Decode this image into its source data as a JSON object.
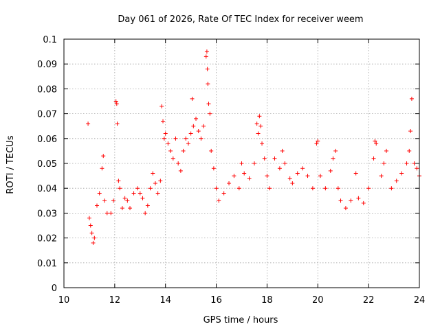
{
  "chart_data": {
    "type": "scatter",
    "title": "Day 061 of 2026, Rate Of TEC Index for receiver weem",
    "xlabel": "GPS time / hours",
    "ylabel": "ROTI / TECUs",
    "xlim": [
      10,
      24
    ],
    "ylim": [
      0,
      0.1
    ],
    "xticks": [
      10,
      12,
      14,
      16,
      18,
      20,
      22,
      24
    ],
    "yticks": [
      0,
      0.01,
      0.02,
      0.03,
      0.04,
      0.05,
      0.06,
      0.07,
      0.08,
      0.09,
      0.1
    ],
    "grid": true,
    "marker": "+",
    "color": "#ff0000",
    "points": [
      [
        10.95,
        0.066
      ],
      [
        11.0,
        0.028
      ],
      [
        11.05,
        0.025
      ],
      [
        11.1,
        0.022
      ],
      [
        11.15,
        0.018
      ],
      [
        11.2,
        0.02
      ],
      [
        11.3,
        0.033
      ],
      [
        11.4,
        0.038
      ],
      [
        11.5,
        0.048
      ],
      [
        11.55,
        0.053
      ],
      [
        11.6,
        0.035
      ],
      [
        11.7,
        0.03
      ],
      [
        11.85,
        0.03
      ],
      [
        11.95,
        0.035
      ],
      [
        12.05,
        0.075
      ],
      [
        12.08,
        0.074
      ],
      [
        12.1,
        0.066
      ],
      [
        12.15,
        0.043
      ],
      [
        12.2,
        0.04
      ],
      [
        12.3,
        0.032
      ],
      [
        12.4,
        0.036
      ],
      [
        12.5,
        0.035
      ],
      [
        12.6,
        0.032
      ],
      [
        12.75,
        0.038
      ],
      [
        12.9,
        0.04
      ],
      [
        13.0,
        0.038
      ],
      [
        13.1,
        0.036
      ],
      [
        13.2,
        0.03
      ],
      [
        13.3,
        0.033
      ],
      [
        13.4,
        0.04
      ],
      [
        13.5,
        0.046
      ],
      [
        13.6,
        0.042
      ],
      [
        13.7,
        0.038
      ],
      [
        13.8,
        0.043
      ],
      [
        13.85,
        0.073
      ],
      [
        13.9,
        0.067
      ],
      [
        13.95,
        0.06
      ],
      [
        14.0,
        0.062
      ],
      [
        14.1,
        0.058
      ],
      [
        14.2,
        0.055
      ],
      [
        14.3,
        0.052
      ],
      [
        14.4,
        0.06
      ],
      [
        14.5,
        0.05
      ],
      [
        14.6,
        0.047
      ],
      [
        14.7,
        0.055
      ],
      [
        14.8,
        0.06
      ],
      [
        14.9,
        0.058
      ],
      [
        15.0,
        0.062
      ],
      [
        15.05,
        0.076
      ],
      [
        15.1,
        0.065
      ],
      [
        15.2,
        0.068
      ],
      [
        15.3,
        0.063
      ],
      [
        15.4,
        0.06
      ],
      [
        15.5,
        0.065
      ],
      [
        15.6,
        0.093
      ],
      [
        15.63,
        0.095
      ],
      [
        15.65,
        0.088
      ],
      [
        15.67,
        0.082
      ],
      [
        15.7,
        0.074
      ],
      [
        15.75,
        0.07
      ],
      [
        15.8,
        0.055
      ],
      [
        15.9,
        0.048
      ],
      [
        16.0,
        0.04
      ],
      [
        16.1,
        0.035
      ],
      [
        16.3,
        0.038
      ],
      [
        16.5,
        0.042
      ],
      [
        16.7,
        0.045
      ],
      [
        16.9,
        0.04
      ],
      [
        17.0,
        0.05
      ],
      [
        17.1,
        0.046
      ],
      [
        17.3,
        0.044
      ],
      [
        17.5,
        0.05
      ],
      [
        17.6,
        0.066
      ],
      [
        17.65,
        0.062
      ],
      [
        17.7,
        0.069
      ],
      [
        17.75,
        0.065
      ],
      [
        17.8,
        0.058
      ],
      [
        17.9,
        0.052
      ],
      [
        18.0,
        0.045
      ],
      [
        18.1,
        0.04
      ],
      [
        18.3,
        0.052
      ],
      [
        18.5,
        0.048
      ],
      [
        18.6,
        0.055
      ],
      [
        18.7,
        0.05
      ],
      [
        18.9,
        0.044
      ],
      [
        19.0,
        0.042
      ],
      [
        19.2,
        0.046
      ],
      [
        19.4,
        0.048
      ],
      [
        19.6,
        0.045
      ],
      [
        19.8,
        0.04
      ],
      [
        19.95,
        0.058
      ],
      [
        20.0,
        0.059
      ],
      [
        20.1,
        0.045
      ],
      [
        20.3,
        0.04
      ],
      [
        20.5,
        0.047
      ],
      [
        20.6,
        0.052
      ],
      [
        20.7,
        0.055
      ],
      [
        20.8,
        0.04
      ],
      [
        20.9,
        0.035
      ],
      [
        21.1,
        0.032
      ],
      [
        21.3,
        0.035
      ],
      [
        21.5,
        0.046
      ],
      [
        21.6,
        0.036
      ],
      [
        21.8,
        0.034
      ],
      [
        22.0,
        0.04
      ],
      [
        22.2,
        0.052
      ],
      [
        22.25,
        0.059
      ],
      [
        22.3,
        0.058
      ],
      [
        22.5,
        0.045
      ],
      [
        22.6,
        0.05
      ],
      [
        22.7,
        0.055
      ],
      [
        22.9,
        0.04
      ],
      [
        23.1,
        0.043
      ],
      [
        23.3,
        0.046
      ],
      [
        23.5,
        0.05
      ],
      [
        23.6,
        0.055
      ],
      [
        23.65,
        0.063
      ],
      [
        23.7,
        0.076
      ],
      [
        23.8,
        0.05
      ],
      [
        23.9,
        0.048
      ],
      [
        24.0,
        0.045
      ]
    ]
  }
}
